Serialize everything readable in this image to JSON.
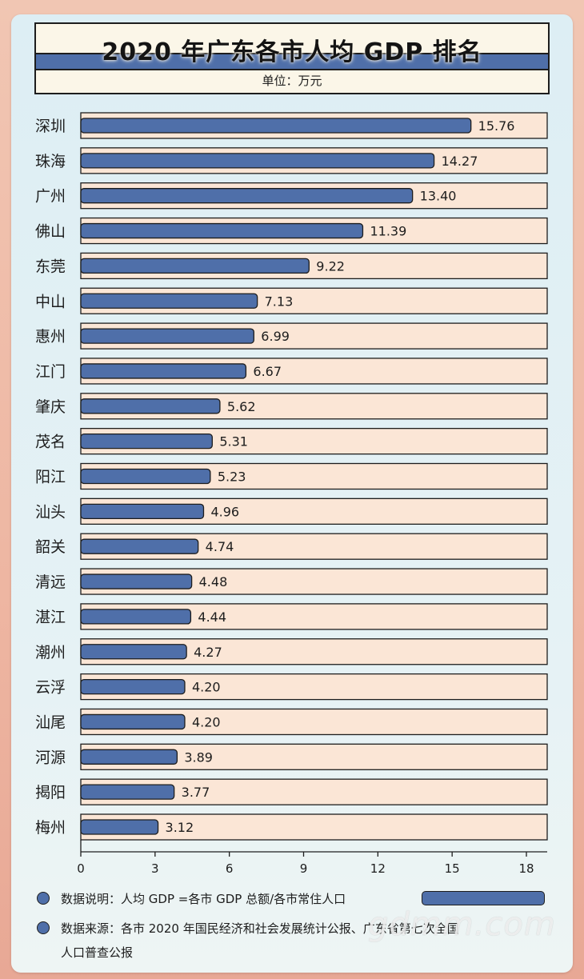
{
  "header": {
    "title": "2020 年广东各市人均 GDP 排名",
    "unit": "单位：万元"
  },
  "colors": {
    "bar": "#4f6fa9",
    "track": "#fbe6d6",
    "outline": "#1d1d1d"
  },
  "chart_data": {
    "type": "bar",
    "orientation": "horizontal",
    "title": "2020 年广东各市人均 GDP 排名",
    "categories": [
      "深圳",
      "珠海",
      "广州",
      "佛山",
      "东莞",
      "中山",
      "惠州",
      "江门",
      "肇庆",
      "茂名",
      "阳江",
      "汕头",
      "韶关",
      "清远",
      "湛江",
      "潮州",
      "云浮",
      "汕尾",
      "河源",
      "揭阳",
      "梅州"
    ],
    "values": [
      15.76,
      14.27,
      13.4,
      11.39,
      9.22,
      7.13,
      6.99,
      6.67,
      5.62,
      5.31,
      5.23,
      4.96,
      4.74,
      4.48,
      4.44,
      4.27,
      4.2,
      4.2,
      3.89,
      3.77,
      3.12
    ],
    "value_labels": [
      "15.76",
      "14.27",
      "13.40",
      "11.39",
      "9.22",
      "7.13",
      "6.99",
      "6.67",
      "5.62",
      "5.31",
      "5.23",
      "4.96",
      "4.74",
      "4.48",
      "4.44",
      "4.27",
      "4.20",
      "4.20",
      "3.89",
      "3.77",
      "3.12"
    ],
    "xlim": [
      0,
      18
    ],
    "xticks": [
      "0",
      "3",
      "6",
      "9",
      "12",
      "15",
      "18"
    ],
    "grid": false
  },
  "notes": {
    "definition": "数据说明：人均 GDP =各市 GDP 总额/各市常住人口",
    "source_line1": "数据来源：各市 2020 年国民经济和社会发展统计公报、广东省第七次全国",
    "source_line2": "人口普查公报"
  },
  "watermark": "gdmm.com"
}
